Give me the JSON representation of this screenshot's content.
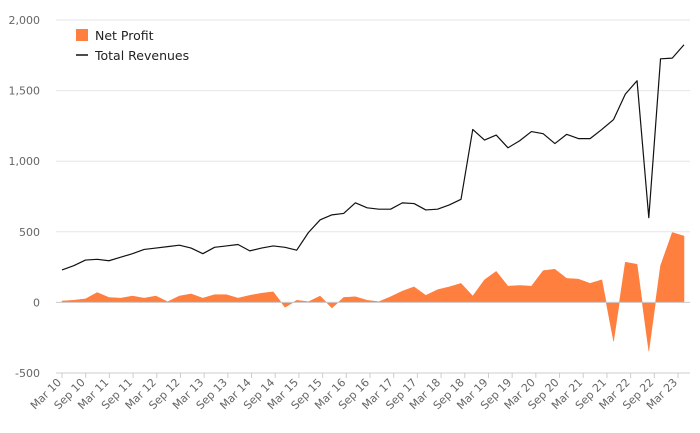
{
  "chart_data": {
    "type": "area",
    "title": "",
    "xlabel": "",
    "ylabel": "",
    "ylim": [
      -500,
      2000
    ],
    "yticks": [
      -500,
      0,
      500,
      1000,
      1500,
      2000
    ],
    "ytick_labels": [
      "-500",
      "0",
      "500",
      "1,000",
      "1,500",
      "2,000"
    ],
    "grid": true,
    "legend_position": "top-left",
    "xtick_labels": [
      "Mar 10",
      "Sep 10",
      "Mar 11",
      "Sep 11",
      "Mar 12",
      "Sep 12",
      "Mar 13",
      "Sep 13",
      "Mar 14",
      "Sep 14",
      "Mar 15",
      "Sep 15",
      "Mar 16",
      "Sep 16",
      "Mar 17",
      "Sep 17",
      "Mar 18",
      "Sep 18",
      "Mar 19",
      "Sep 19",
      "Mar 20",
      "Sep 20",
      "Mar 21",
      "Sep 21",
      "Mar 22",
      "Sep 22",
      "Mar 23"
    ],
    "series": [
      {
        "name": "Net Profit",
        "kind": "area",
        "color": "#ff7f3f",
        "values": [
          10,
          15,
          25,
          70,
          35,
          30,
          45,
          30,
          45,
          5,
          45,
          60,
          30,
          55,
          55,
          30,
          50,
          65,
          75,
          -35,
          15,
          5,
          45,
          -40,
          35,
          40,
          15,
          5,
          40,
          80,
          110,
          50,
          90,
          110,
          135,
          45,
          160,
          220,
          115,
          120,
          115,
          225,
          235,
          170,
          165,
          135,
          160,
          -275,
          285,
          270,
          -345,
          260,
          495,
          470
        ]
      },
      {
        "name": "Total Revenues",
        "kind": "line",
        "color": "#111111",
        "values": [
          230,
          260,
          300,
          305,
          295,
          320,
          345,
          375,
          385,
          395,
          405,
          385,
          345,
          390,
          400,
          410,
          365,
          385,
          400,
          390,
          370,
          495,
          585,
          620,
          630,
          705,
          670,
          660,
          660,
          705,
          700,
          655,
          660,
          690,
          730,
          1225,
          1150,
          1185,
          1095,
          1145,
          1210,
          1195,
          1125,
          1190,
          1160,
          1160,
          1225,
          1295,
          1475,
          1570,
          600,
          1725,
          1730,
          1825
        ]
      }
    ]
  }
}
